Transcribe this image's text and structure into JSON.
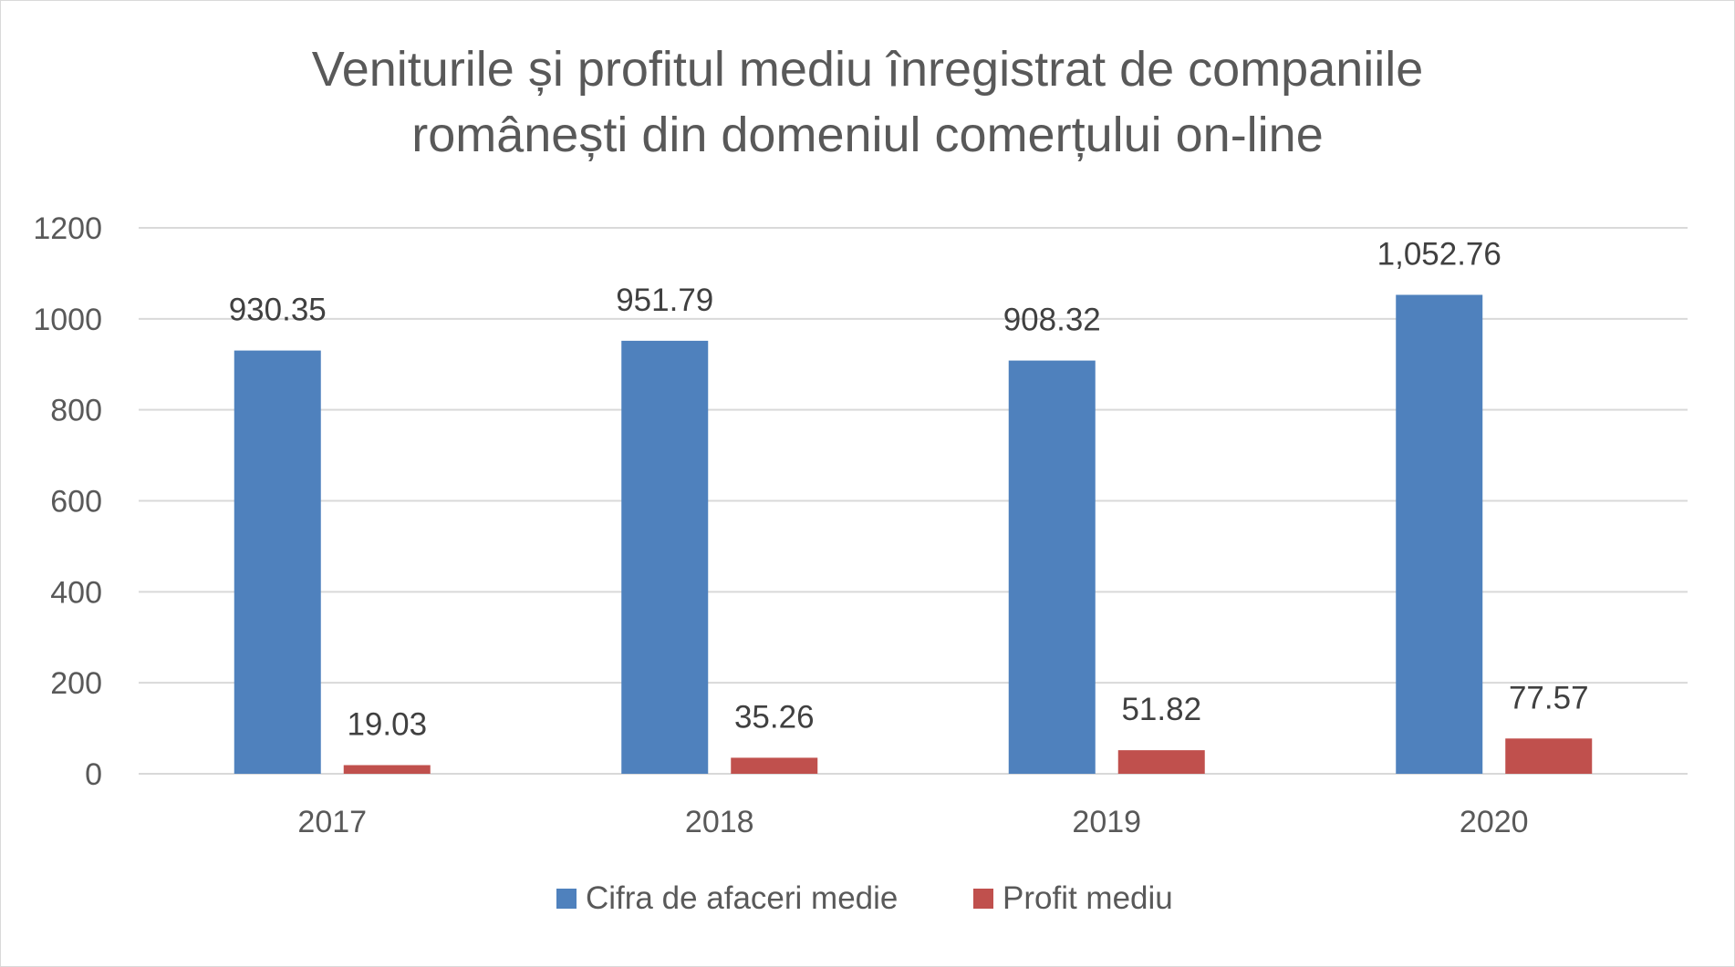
{
  "chart_data": {
    "type": "bar",
    "title_lines": [
      "Veniturile și profitul mediu înregistrat de companiile",
      "românești din domeniul comerțului on-line"
    ],
    "categories": [
      "2017",
      "2018",
      "2019",
      "2020"
    ],
    "series": [
      {
        "name": "Cifra de afaceri medie",
        "color": "#4f81bd",
        "values": [
          930.35,
          951.79,
          908.32,
          1052.76
        ],
        "labels": [
          "930.35",
          "951.79",
          "908.32",
          "1,052.76"
        ]
      },
      {
        "name": "Profit mediu",
        "color": "#c0504d",
        "values": [
          19.03,
          35.26,
          51.82,
          77.57
        ],
        "labels": [
          "19.03",
          "35.26",
          "51.82",
          "77.57"
        ]
      }
    ],
    "ylim": [
      0,
      1200
    ],
    "yticks": [
      "0",
      "200",
      "400",
      "600",
      "800",
      "1000",
      "1200"
    ],
    "grid": true,
    "gridColor": "#d9d9d9",
    "legend_position": "bottom"
  }
}
